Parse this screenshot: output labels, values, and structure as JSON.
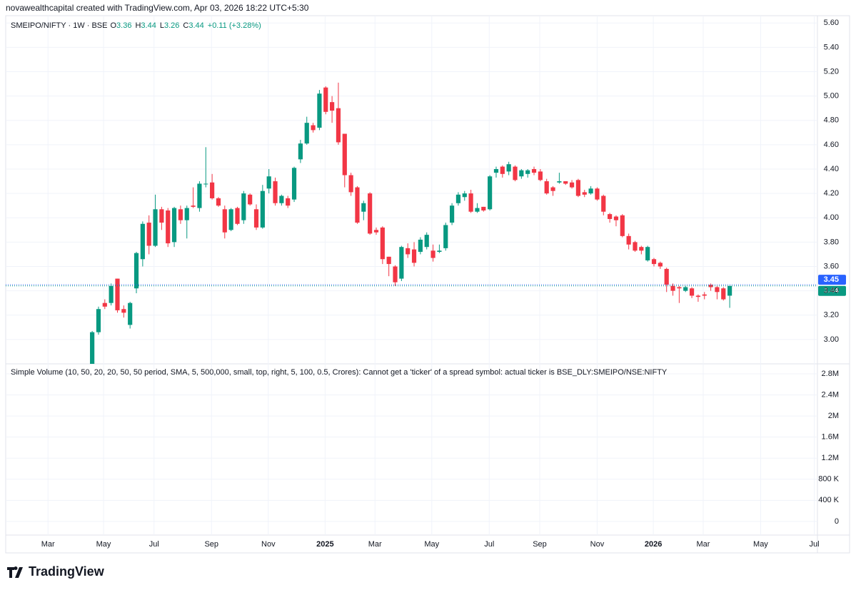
{
  "chart_data": {
    "type": "candlestick",
    "attribution": "novawealthcapital created with TradingView.com, Apr 03, 2026 18:22 UTC+5:30",
    "symbol": "SMEIPO/NIFTY · 1W · BSE",
    "ohlc_legend": [
      {
        "label": "O",
        "value": 3.36
      },
      {
        "label": "H",
        "value": 3.44
      },
      {
        "label": "L",
        "value": 3.26
      },
      {
        "label": "C",
        "value": 3.44
      }
    ],
    "change": "+0.11 (+3.28%)",
    "up_color": "#089981",
    "down_color": "#f23645",
    "open": [
      2.8,
      3.06,
      3.3,
      3.3,
      3.5,
      3.25,
      3.12,
      3.42,
      3.66,
      3.96,
      3.77,
      4.07,
      4.06,
      3.8,
      4.07,
      3.98,
      4.1,
      4.08,
      4.28,
      4.29,
      4.16,
      4.07,
      3.9,
      4.08,
      3.98,
      4.19,
      4.07,
      3.92,
      4.24,
      4.3,
      4.12,
      4.16,
      4.15,
      4.48,
      4.61,
      4.76,
      4.74,
      5.07,
      4.95,
      4.9,
      4.69,
      4.35,
      4.25,
      4.05,
      4.2,
      3.9,
      3.92,
      3.68,
      3.6,
      3.5,
      3.75,
      3.74,
      3.72,
      3.76,
      3.73,
      3.72,
      3.75,
      3.96,
      4.12,
      4.17,
      4.2,
      4.05,
      4.09,
      4.07,
      4.37,
      4.42,
      4.38,
      4.42,
      4.34,
      4.36,
      4.4,
      4.38,
      4.3,
      4.25,
      4.29,
      4.3,
      4.29,
      4.31,
      4.21,
      4.2,
      4.24,
      4.18,
      4.03,
      4.01,
      4.02,
      3.85,
      3.8,
      3.76,
      3.65,
      3.66,
      3.63,
      3.58,
      3.44,
      3.43,
      3.4,
      3.42,
      3.36,
      3.37,
      3.45,
      3.43,
      3.42,
      3.36
    ],
    "high": [
      3.07,
      3.27,
      3.33,
      3.46,
      3.5,
      3.28,
      3.31,
      3.72,
      3.97,
      4.02,
      4.19,
      4.09,
      4.08,
      4.09,
      4.1,
      4.1,
      4.25,
      4.3,
      4.58,
      4.36,
      4.17,
      4.1,
      4.08,
      4.09,
      4.22,
      4.2,
      4.11,
      4.27,
      4.4,
      4.33,
      4.19,
      4.18,
      4.42,
      4.64,
      4.83,
      4.78,
      5.05,
      5.08,
      5.0,
      5.11,
      4.69,
      4.37,
      4.26,
      4.14,
      4.21,
      3.92,
      3.93,
      3.68,
      3.61,
      3.77,
      3.79,
      3.8,
      3.84,
      3.88,
      3.78,
      3.78,
      3.96,
      4.12,
      4.21,
      4.22,
      4.23,
      4.12,
      4.09,
      4.35,
      4.42,
      4.43,
      4.46,
      4.43,
      4.4,
      4.4,
      4.42,
      4.4,
      4.32,
      4.26,
      4.37,
      4.3,
      4.31,
      4.32,
      4.23,
      4.26,
      4.25,
      4.19,
      4.04,
      4.02,
      4.03,
      3.87,
      3.81,
      3.77,
      3.77,
      3.67,
      3.64,
      3.59,
      3.46,
      3.44,
      3.44,
      3.43,
      3.37,
      3.39,
      3.46,
      3.44,
      3.43,
      3.44
    ],
    "low": [
      2.78,
      3.04,
      3.25,
      3.28,
      3.22,
      3.18,
      3.09,
      3.38,
      3.6,
      3.7,
      3.76,
      3.9,
      3.76,
      3.76,
      3.95,
      3.83,
      4.08,
      4.05,
      4.25,
      4.15,
      4.09,
      3.83,
      3.89,
      3.94,
      3.95,
      4.1,
      3.9,
      3.91,
      4.2,
      4.1,
      4.1,
      4.08,
      4.13,
      4.45,
      4.6,
      4.7,
      4.72,
      4.85,
      4.78,
      4.6,
      4.25,
      4.18,
      3.95,
      3.98,
      3.86,
      3.86,
      3.62,
      3.52,
      3.44,
      3.48,
      3.67,
      3.6,
      3.7,
      3.74,
      3.64,
      3.71,
      3.73,
      3.94,
      4.1,
      4.14,
      4.04,
      4.04,
      4.05,
      4.06,
      4.33,
      4.33,
      4.35,
      4.3,
      4.32,
      4.33,
      4.35,
      4.3,
      4.19,
      4.18,
      4.28,
      4.27,
      4.24,
      4.17,
      4.17,
      4.19,
      4.14,
      4.02,
      3.96,
      3.93,
      3.84,
      3.74,
      3.72,
      3.7,
      3.64,
      3.6,
      3.58,
      3.39,
      3.36,
      3.3,
      3.39,
      3.34,
      3.31,
      3.33,
      3.4,
      3.33,
      3.32,
      3.26
    ],
    "close": [
      3.06,
      3.25,
      3.27,
      3.44,
      3.24,
      3.22,
      3.3,
      3.71,
      3.95,
      3.77,
      4.07,
      3.96,
      3.79,
      4.08,
      3.98,
      4.08,
      4.09,
      4.28,
      4.28,
      4.16,
      4.1,
      3.88,
      4.07,
      3.95,
      4.2,
      4.11,
      3.92,
      4.22,
      4.34,
      4.12,
      4.18,
      4.1,
      4.41,
      4.61,
      4.78,
      4.72,
      5.02,
      4.87,
      4.88,
      4.62,
      4.35,
      4.21,
      3.96,
      4.12,
      3.87,
      3.88,
      3.66,
      3.62,
      3.47,
      3.76,
      3.7,
      3.63,
      3.82,
      3.86,
      3.67,
      3.73,
      3.94,
      4.1,
      4.19,
      4.2,
      4.05,
      4.08,
      4.06,
      4.34,
      4.4,
      4.36,
      4.44,
      4.31,
      4.39,
      4.39,
      4.37,
      4.31,
      4.2,
      4.22,
      4.3,
      4.28,
      4.25,
      4.18,
      4.19,
      4.24,
      4.15,
      4.05,
      3.99,
      3.98,
      3.85,
      3.78,
      3.73,
      3.73,
      3.76,
      3.62,
      3.6,
      3.45,
      3.4,
      3.42,
      3.43,
      3.36,
      3.35,
      3.36,
      3.43,
      3.39,
      3.33,
      3.44
    ],
    "xlim": [
      -13.7,
      114.9
    ],
    "xticks": [
      {
        "value": -7.0,
        "label": "Mar"
      },
      {
        "value": 1.8,
        "label": "May"
      },
      {
        "value": 9.8,
        "label": "Jul"
      },
      {
        "value": 18.9,
        "label": "Sep"
      },
      {
        "value": 27.9,
        "label": "Nov"
      },
      {
        "value": 36.9,
        "label": "2025"
      },
      {
        "value": 44.8,
        "label": "Mar"
      },
      {
        "value": 53.8,
        "label": "May"
      },
      {
        "value": 62.9,
        "label": "Jul"
      },
      {
        "value": 70.9,
        "label": "Sep"
      },
      {
        "value": 80.0,
        "label": "Nov"
      },
      {
        "value": 88.9,
        "label": "2026"
      },
      {
        "value": 96.8,
        "label": "Mar"
      },
      {
        "value": 105.9,
        "label": "May"
      },
      {
        "value": 114.4,
        "label": "Jul"
      }
    ],
    "ylim": [
      2.8,
      5.66
    ],
    "yticks": [
      {
        "value": 3,
        "label": "3.00"
      },
      {
        "value": 3.2,
        "label": "3.20"
      },
      {
        "value": 3.4,
        "label": "3.40"
      },
      {
        "value": 3.6,
        "label": "3.60"
      },
      {
        "value": 3.8,
        "label": "3.80"
      },
      {
        "value": 4,
        "label": "4.00"
      },
      {
        "value": 4.2,
        "label": "4.20"
      },
      {
        "value": 4.4,
        "label": "4.40"
      },
      {
        "value": 4.6,
        "label": "4.60"
      },
      {
        "value": 4.8,
        "label": "4.80"
      },
      {
        "value": 5,
        "label": "5.00"
      },
      {
        "value": 5.2,
        "label": "5.20"
      },
      {
        "value": 5.4,
        "label": "5.40"
      },
      {
        "value": 5.6,
        "label": "5.60"
      }
    ],
    "price_lines": [
      {
        "value": 3.45,
        "color": "#2962ff"
      },
      {
        "value": 3.44,
        "color": "#089981"
      }
    ],
    "volume_title": "Simple Volume (10, 50, 20, 20, 50, 50 period, SMA, 5, 500,000, small, top, right, 5, 100, 0.5, Crores): Cannot get a 'ticker' of a spread symbol: actual ticker is BSE_DLY:SMEIPO/NSE:NIFTY",
    "y2lim": [
      -259000,
      2990000
    ],
    "y2ticks": [
      0,
      {
        "value": 400000,
        "label": "400 K"
      },
      {
        "value": 800000,
        "label": "800 K"
      },
      {
        "value": 1200000,
        "label": "1.2M"
      },
      {
        "value": 1600000,
        "label": "1.6M"
      },
      {
        "value": 2000000,
        "label": "2M"
      },
      {
        "value": 2400000,
        "label": "2.4M"
      },
      {
        "value": 2800000,
        "label": "2.8M"
      }
    ],
    "grid": true,
    "brand": "TradingView"
  }
}
